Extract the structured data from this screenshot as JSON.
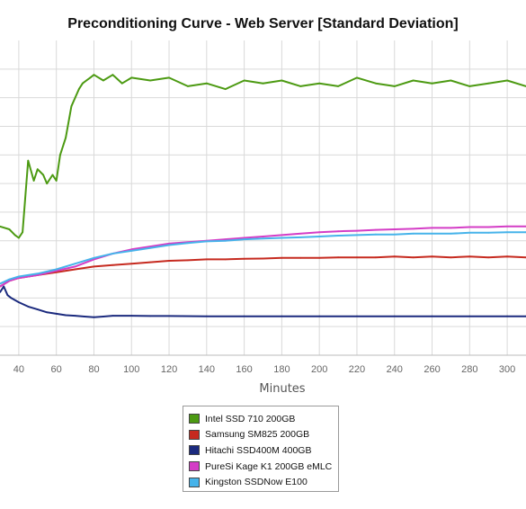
{
  "chart_data": {
    "type": "line",
    "title": "Preconditioning Curve - Web Server [Standard Deviation]",
    "xlabel": "Minutes",
    "ylabel": "",
    "x_ticks": [
      "40",
      "60",
      "80",
      "100",
      "120",
      "140",
      "160",
      "180",
      "200",
      "220",
      "240",
      "260",
      "280",
      "300"
    ],
    "xlim": [
      30,
      310
    ],
    "ylim": [
      0,
      11
    ],
    "y_gridlines": [
      1,
      2,
      3,
      4,
      5,
      6,
      7,
      8,
      9,
      10
    ],
    "y_tick_labels_visible": false,
    "grid": true,
    "legend_position": "bottom-center",
    "series": [
      {
        "name": "Intel SSD 710 200GB",
        "color": "#4c9a12",
        "x": [
          30,
          35,
          38,
          40,
          42,
          45,
          48,
          50,
          53,
          55,
          58,
          60,
          62,
          65,
          68,
          70,
          72,
          74,
          76,
          78,
          80,
          85,
          90,
          95,
          100,
          110,
          120,
          130,
          140,
          150,
          160,
          170,
          180,
          190,
          200,
          210,
          220,
          230,
          240,
          250,
          260,
          270,
          280,
          290,
          300,
          310
        ],
        "y": [
          4.5,
          4.4,
          4.2,
          4.1,
          4.3,
          6.8,
          6.1,
          6.5,
          6.3,
          6.0,
          6.3,
          6.1,
          7.0,
          7.6,
          8.7,
          9.0,
          9.3,
          9.5,
          9.6,
          9.7,
          9.8,
          9.6,
          9.8,
          9.5,
          9.7,
          9.6,
          9.7,
          9.4,
          9.5,
          9.3,
          9.6,
          9.5,
          9.6,
          9.4,
          9.5,
          9.4,
          9.7,
          9.5,
          9.4,
          9.6,
          9.5,
          9.6,
          9.4,
          9.5,
          9.6,
          9.4
        ]
      },
      {
        "name": "Samsung SM825 200GB",
        "color": "#c62a1f",
        "x": [
          30,
          35,
          40,
          50,
          60,
          70,
          80,
          90,
          100,
          110,
          120,
          130,
          140,
          150,
          160,
          170,
          180,
          190,
          200,
          210,
          220,
          230,
          240,
          250,
          260,
          270,
          280,
          290,
          300,
          310
        ],
        "y": [
          2.4,
          2.6,
          2.7,
          2.8,
          2.9,
          3.0,
          3.1,
          3.15,
          3.2,
          3.25,
          3.3,
          3.32,
          3.35,
          3.35,
          3.37,
          3.38,
          3.4,
          3.4,
          3.4,
          3.42,
          3.42,
          3.42,
          3.45,
          3.42,
          3.45,
          3.42,
          3.45,
          3.42,
          3.45,
          3.42
        ]
      },
      {
        "name": "Hitachi SSD400M 400GB",
        "color": "#1b2a7e",
        "x": [
          30,
          32,
          34,
          36,
          40,
          45,
          50,
          55,
          60,
          65,
          70,
          75,
          80,
          85,
          90,
          100,
          110,
          120,
          140,
          160,
          180,
          200,
          220,
          240,
          260,
          280,
          300,
          310
        ],
        "y": [
          2.2,
          2.4,
          2.1,
          2.0,
          1.85,
          1.7,
          1.6,
          1.5,
          1.45,
          1.4,
          1.38,
          1.35,
          1.33,
          1.35,
          1.38,
          1.38,
          1.37,
          1.37,
          1.36,
          1.36,
          1.36,
          1.36,
          1.36,
          1.36,
          1.36,
          1.36,
          1.36,
          1.36
        ]
      },
      {
        "name": "PureSi Kage K1 200GB eMLC",
        "color": "#d43dc6",
        "x": [
          30,
          35,
          40,
          50,
          60,
          70,
          80,
          90,
          100,
          110,
          120,
          130,
          140,
          150,
          160,
          170,
          180,
          190,
          200,
          210,
          220,
          230,
          240,
          250,
          260,
          270,
          280,
          290,
          300,
          310
        ],
        "y": [
          2.4,
          2.6,
          2.7,
          2.8,
          2.95,
          3.1,
          3.35,
          3.55,
          3.7,
          3.8,
          3.9,
          3.95,
          4.0,
          4.05,
          4.1,
          4.15,
          4.2,
          4.25,
          4.3,
          4.33,
          4.35,
          4.38,
          4.4,
          4.42,
          4.45,
          4.45,
          4.48,
          4.48,
          4.5,
          4.5
        ]
      },
      {
        "name": "Kingston SSDNow E100",
        "color": "#46b3ea",
        "x": [
          30,
          35,
          40,
          50,
          60,
          70,
          80,
          90,
          100,
          110,
          120,
          130,
          140,
          150,
          160,
          170,
          180,
          190,
          200,
          210,
          220,
          230,
          240,
          250,
          260,
          270,
          280,
          290,
          300,
          310
        ],
        "y": [
          2.5,
          2.65,
          2.75,
          2.85,
          3.0,
          3.2,
          3.4,
          3.55,
          3.65,
          3.75,
          3.85,
          3.92,
          3.98,
          4.0,
          4.05,
          4.08,
          4.1,
          4.12,
          4.15,
          4.18,
          4.2,
          4.22,
          4.22,
          4.25,
          4.25,
          4.25,
          4.28,
          4.28,
          4.3,
          4.3
        ]
      }
    ]
  }
}
